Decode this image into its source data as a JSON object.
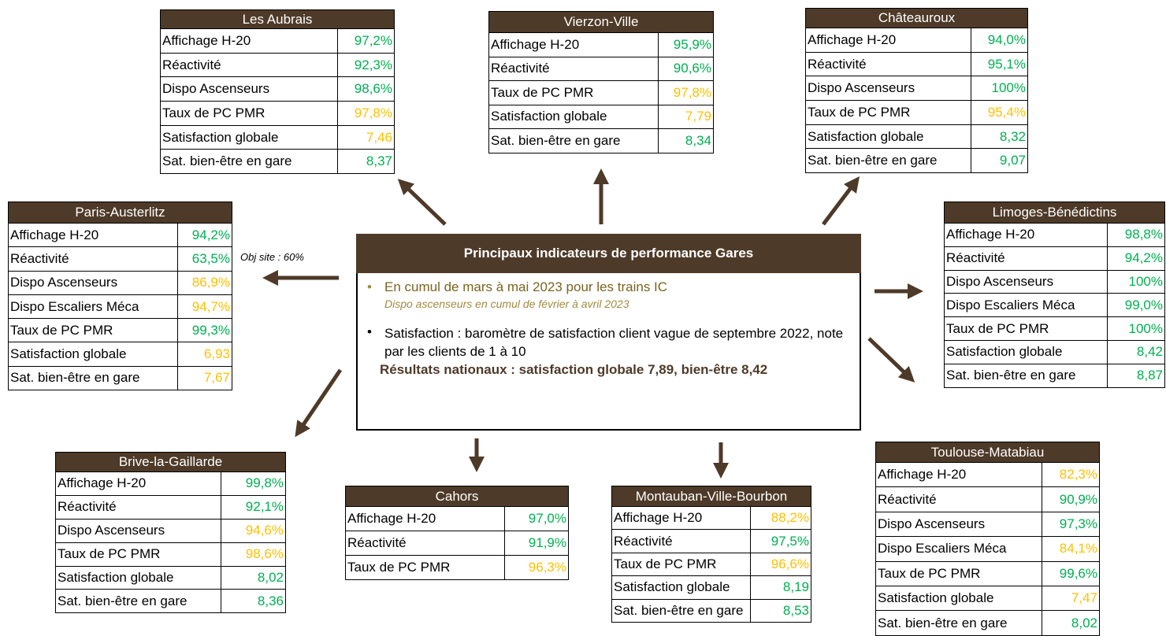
{
  "center": {
    "title": "Principaux indicateurs de performance Gares",
    "bullets": [
      {
        "text": "En cumul de mars à mai 2023 pour les trains IC",
        "note": "Dispo ascenseurs en cumul de février à avril 2023"
      },
      {
        "text": "Satisfaction : baromètre de satisfaction client vague de septembre 2022, note par les clients de 1 à 10",
        "bold": "Résultats nationaux : satisfaction globale 7,89, bien-être 8,42"
      }
    ]
  },
  "annotation": "Obj site : 60%",
  "stations": [
    {
      "name": "Les Aubrais",
      "rows": [
        {
          "label": "Affichage H-20",
          "value": "97,2%",
          "color": "#00b050"
        },
        {
          "label": "Réactivité",
          "value": "92,3%",
          "color": "#00b050"
        },
        {
          "label": "Dispo Ascenseurs",
          "value": "98,6%",
          "color": "#00b050"
        },
        {
          "label": "Taux de PC PMR",
          "value": "97,8%",
          "color": "#ffc000"
        },
        {
          "label": "Satisfaction globale",
          "value": "7,46",
          "color": "#ffc000"
        },
        {
          "label": "Sat. bien-être en gare",
          "value": "8,37",
          "color": "#00b050"
        }
      ]
    },
    {
      "name": "Vierzon-Ville",
      "rows": [
        {
          "label": "Affichage H-20",
          "value": "95,9%",
          "color": "#00b050"
        },
        {
          "label": "Réactivité",
          "value": "90,6%",
          "color": "#00b050"
        },
        {
          "label": "Taux de PC PMR",
          "value": "97,8%",
          "color": "#ffc000"
        },
        {
          "label": "Satisfaction globale",
          "value": "7,79",
          "color": "#ffc000"
        },
        {
          "label": "Sat. bien-être en gare",
          "value": "8,34",
          "color": "#00b050"
        }
      ]
    },
    {
      "name": "Châteauroux",
      "rows": [
        {
          "label": "Affichage H-20",
          "value": "94,0%",
          "color": "#00b050"
        },
        {
          "label": "Réactivité",
          "value": "95,1%",
          "color": "#00b050"
        },
        {
          "label": "Dispo Ascenseurs",
          "value": "100%",
          "color": "#00b050"
        },
        {
          "label": "Taux de PC PMR",
          "value": "95,4%",
          "color": "#ffc000"
        },
        {
          "label": "Satisfaction globale",
          "value": "8,32",
          "color": "#00b050"
        },
        {
          "label": "Sat. bien-être en gare",
          "value": "9,07",
          "color": "#00b050"
        }
      ]
    },
    {
      "name": "Paris-Austerlitz",
      "rows": [
        {
          "label": "Affichage H-20",
          "value": "94,2%",
          "color": "#00b050"
        },
        {
          "label": "Réactivité",
          "value": "63,5%",
          "color": "#00b050"
        },
        {
          "label": "Dispo Ascenseurs",
          "value": "86,9%",
          "color": "#ffc000"
        },
        {
          "label": "Dispo Escaliers Méca",
          "value": "94,7%",
          "color": "#ffc000"
        },
        {
          "label": "Taux de PC PMR",
          "value": "99,3%",
          "color": "#00b050"
        },
        {
          "label": "Satisfaction globale",
          "value": "6,93",
          "color": "#ffc000"
        },
        {
          "label": "Sat. bien-être en gare",
          "value": "7,67",
          "color": "#ffc000"
        }
      ]
    },
    {
      "name": "Limoges-Bénédictins",
      "rows": [
        {
          "label": "Affichage H-20",
          "value": "98,8%",
          "color": "#00b050"
        },
        {
          "label": "Réactivité",
          "value": "94,2%",
          "color": "#00b050"
        },
        {
          "label": "Dispo Ascenseurs",
          "value": "100%",
          "color": "#00b050"
        },
        {
          "label": "Dispo Escaliers Méca",
          "value": "99,0%",
          "color": "#00b050"
        },
        {
          "label": "Taux de PC PMR",
          "value": "100%",
          "color": "#00b050"
        },
        {
          "label": "Satisfaction globale",
          "value": "8,42",
          "color": "#00b050"
        },
        {
          "label": "Sat. bien-être en gare",
          "value": "8,87",
          "color": "#00b050"
        }
      ]
    },
    {
      "name": "Brive-la-Gaillarde",
      "rows": [
        {
          "label": "Affichage H-20",
          "value": "99,8%",
          "color": "#00b050"
        },
        {
          "label": "Réactivité",
          "value": "92,1%",
          "color": "#00b050"
        },
        {
          "label": "Dispo Ascenseurs",
          "value": "94,6%",
          "color": "#ffc000"
        },
        {
          "label": "Taux de PC PMR",
          "value": "98,6%",
          "color": "#ffc000"
        },
        {
          "label": "Satisfaction globale",
          "value": "8,02",
          "color": "#00b050"
        },
        {
          "label": "Sat. bien-être en gare",
          "value": "8,36",
          "color": "#00b050"
        }
      ]
    },
    {
      "name": "Cahors",
      "rows": [
        {
          "label": "Affichage H-20",
          "value": "97,0%",
          "color": "#00b050"
        },
        {
          "label": "Réactivité",
          "value": "91,9%",
          "color": "#00b050"
        },
        {
          "label": "Taux de PC PMR",
          "value": "96,3%",
          "color": "#ffc000"
        }
      ]
    },
    {
      "name": "Montauban-Ville-Bourbon",
      "rows": [
        {
          "label": "Affichage H-20",
          "value": "88,2%",
          "color": "#ffc000"
        },
        {
          "label": "Réactivité",
          "value": "97,5%",
          "color": "#00b050"
        },
        {
          "label": "Taux de PC PMR",
          "value": "96,6%",
          "color": "#ffc000"
        },
        {
          "label": "Satisfaction globale",
          "value": "8,19",
          "color": "#00b050"
        },
        {
          "label": "Sat. bien-être en gare",
          "value": "8,53",
          "color": "#00b050"
        }
      ]
    },
    {
      "name": "Toulouse-Matabiau",
      "rows": [
        {
          "label": "Affichage H-20",
          "value": "82,3%",
          "color": "#ffc000"
        },
        {
          "label": "Réactivité",
          "value": "90,9%",
          "color": "#00b050"
        },
        {
          "label": "Dispo Ascenseurs",
          "value": "97,3%",
          "color": "#00b050"
        },
        {
          "label": "Dispo Escaliers Méca",
          "value": "84,1%",
          "color": "#ffc000"
        },
        {
          "label": "Taux de PC PMR",
          "value": "99,6%",
          "color": "#00b050"
        },
        {
          "label": "Satisfaction globale",
          "value": "7,47",
          "color": "#ffc000"
        },
        {
          "label": "Sat. bien-être en gare",
          "value": "8,02",
          "color": "#00b050"
        }
      ]
    }
  ]
}
